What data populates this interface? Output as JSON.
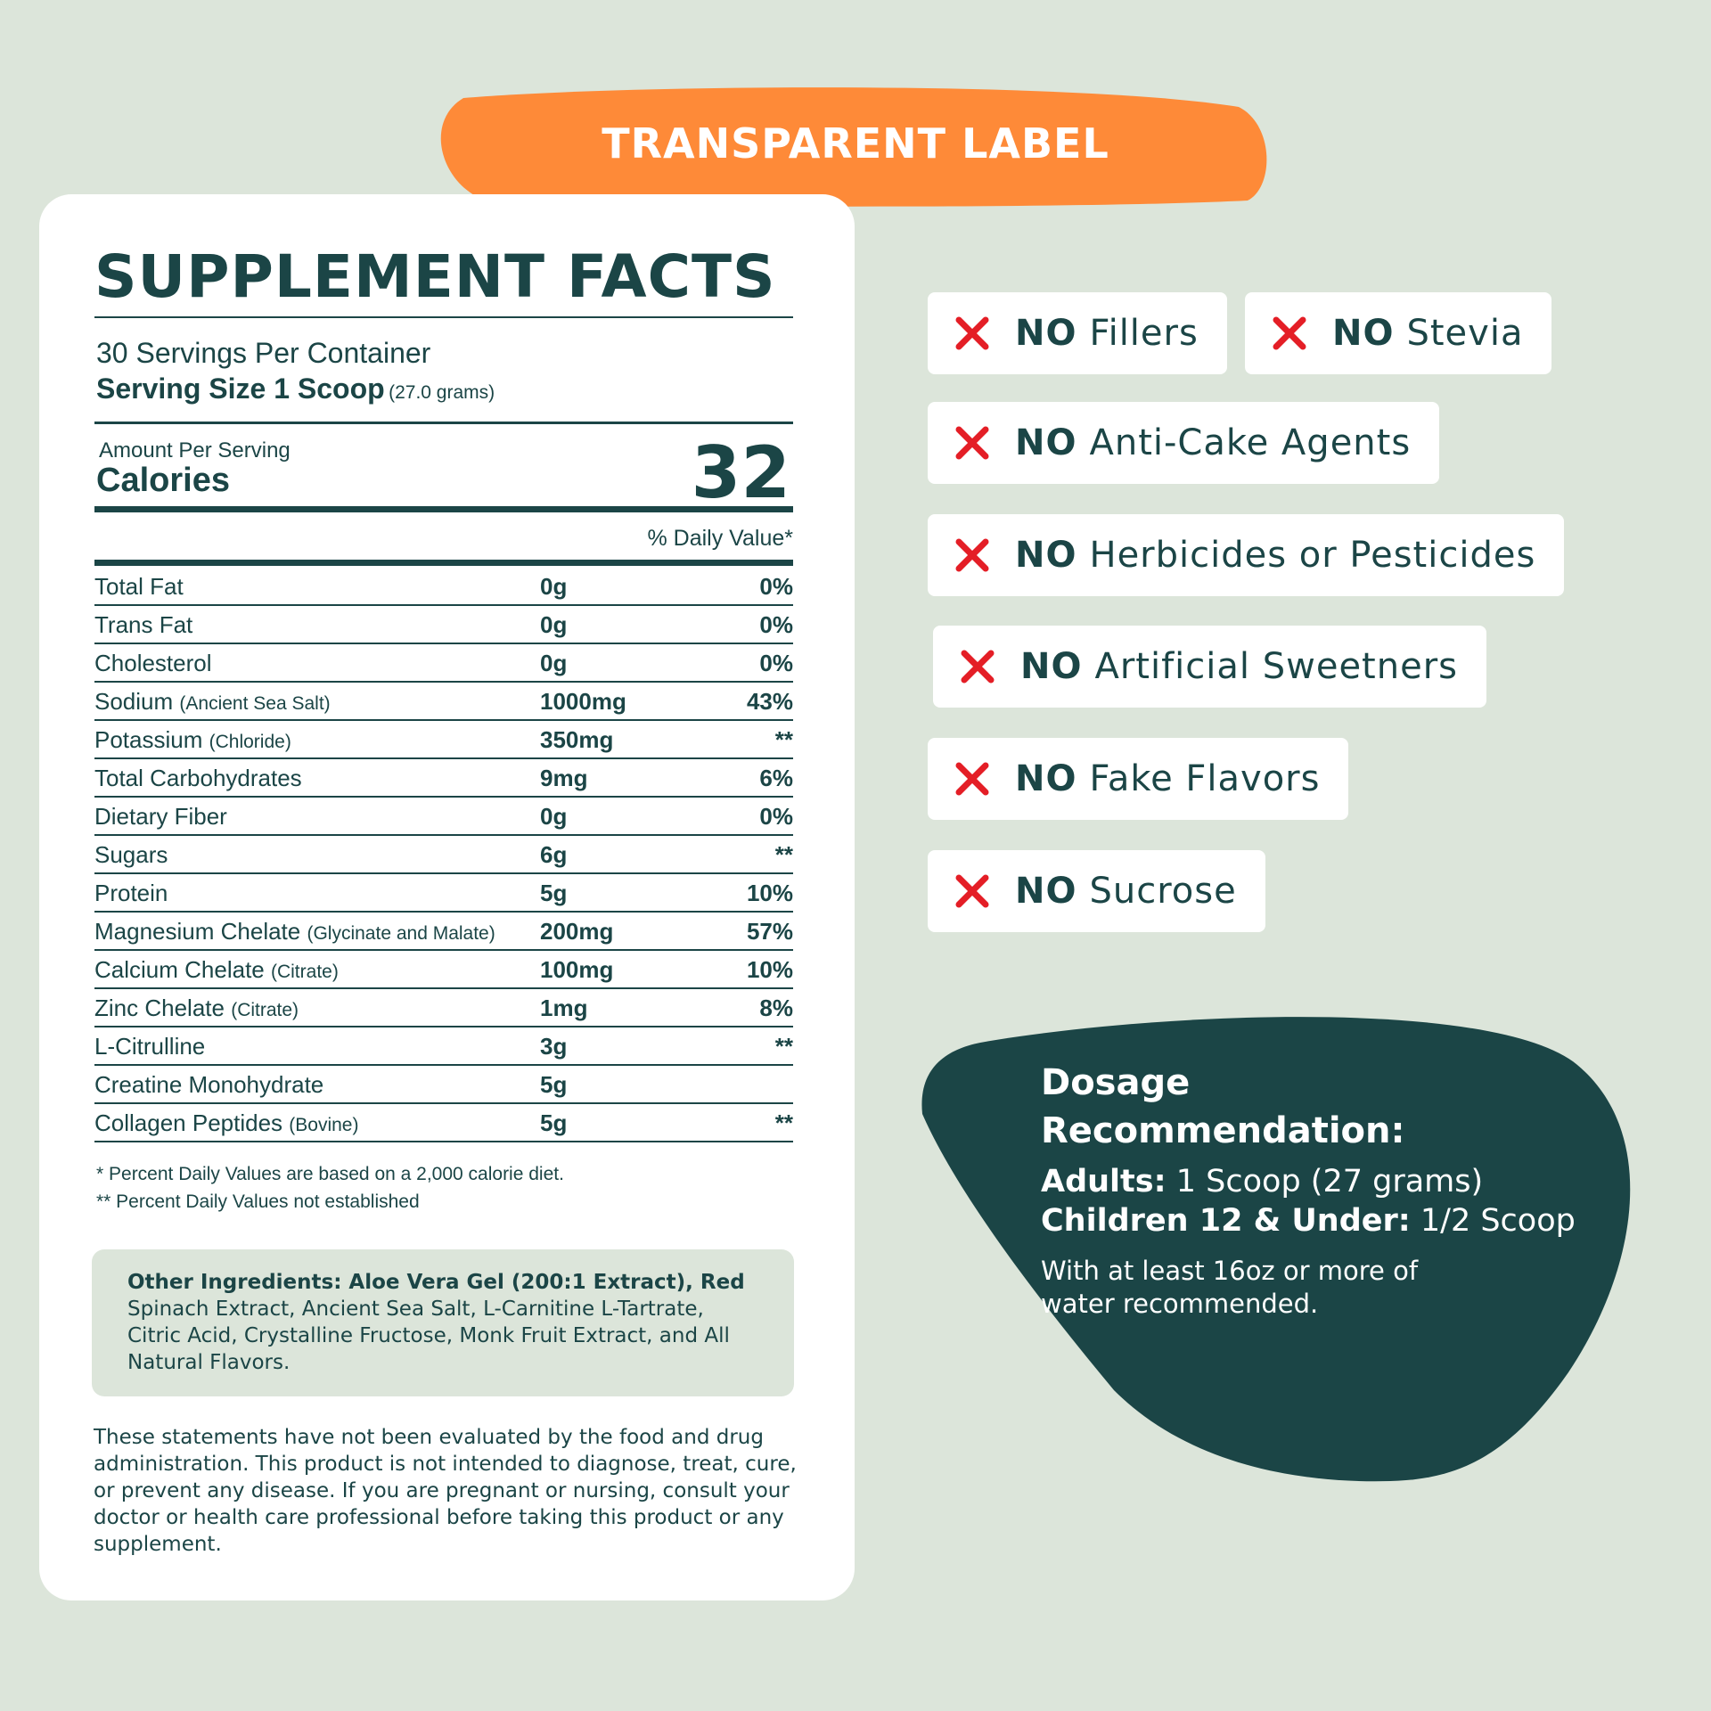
{
  "badge": "TRANSPARENT LABEL",
  "facts": {
    "title": "SUPPLEMENT FACTS",
    "servings": "30 Servings Per Container",
    "serving_size": "Serving Size 1 Scoop",
    "serving_grams": "(27.0 grams)",
    "amount_label": "Amount Per Serving",
    "calories_label": "Calories",
    "calories": "32",
    "dv_header": "% Daily Value*",
    "rows": [
      {
        "name": "Total Fat",
        "amount": "0g",
        "dv": "0%"
      },
      {
        "name": "Trans Fat",
        "amount": "0g",
        "dv": "0%"
      },
      {
        "name": "Cholesterol",
        "amount": "0g",
        "dv": "0%"
      },
      {
        "name": "Sodium",
        "sub": "(Ancient Sea Salt)",
        "amount": "1000mg",
        "dv": "43%"
      },
      {
        "name": "Potassium",
        "sub": "(Chloride)",
        "amount": "350mg",
        "dv": "**"
      },
      {
        "name": "Total Carbohydrates",
        "amount": "9mg",
        "dv": "6%"
      },
      {
        "name": "Dietary Fiber",
        "amount": "0g",
        "dv": "0%"
      },
      {
        "name": "Sugars",
        "amount": "6g",
        "dv": "**"
      },
      {
        "name": "Protein",
        "amount": "5g",
        "dv": "10%"
      },
      {
        "name": "Magnesium Chelate",
        "sub": "(Glycinate and Malate)",
        "amount": "200mg",
        "dv": "57%"
      },
      {
        "name": "Calcium Chelate",
        "sub": "(Citrate)",
        "amount": "100mg",
        "dv": "10%"
      },
      {
        "name": "Zinc Chelate",
        "sub": "(Citrate)",
        "amount": "1mg",
        "dv": "8%"
      },
      {
        "name": "L-Citrulline",
        "amount": "3g",
        "dv": "**"
      },
      {
        "name": "Creatine Monohydrate",
        "amount": "5g"
      },
      {
        "name": "Collagen Peptides",
        "sub": "(Bovine)",
        "amount": "5g",
        "dv": "**"
      }
    ],
    "footnotes": [
      "*  Percent Daily Values are based on a 2,000 calorie diet.",
      "** Percent Daily Values not established"
    ],
    "ingredients_bold": "Other Ingredients: Aloe Vera Gel (200:1 Extract), Red",
    "ingredients_rest": "Spinach Extract, Ancient Sea Salt, L-Carnitine L-Tartrate, Citric Acid, Crystalline Fructose, Monk Fruit Extract, and All Natural Flavors.",
    "disclaimer": "These statements have not been evaluated by the food and drug administration. This product is not intended to diagnose, treat, cure, or prevent any disease. If you are pregnant or nursing, consult your doctor or health care professional before taking this product or any supplement."
  },
  "claims": [
    {
      "no": "NO",
      "text": "Fillers"
    },
    {
      "no": "NO",
      "text": "Stevia"
    },
    {
      "no": "NO",
      "text": "Anti-Cake Agents"
    },
    {
      "no": "NO",
      "text": "Herbicides or Pesticides"
    },
    {
      "no": "NO",
      "text": "Artificial Sweetners"
    },
    {
      "no": "NO",
      "text": "Fake Flavors"
    },
    {
      "no": "NO",
      "text": "Sucrose"
    }
  ],
  "dosage": {
    "title": "Dosage Recommendation:",
    "adults_label": "Adults:",
    "adults": "1 Scoop (27 grams)",
    "children_label": "Children 12 & Under:",
    "children": "1/2 Scoop",
    "note": "With at least 16oz or more of water recommended."
  }
}
